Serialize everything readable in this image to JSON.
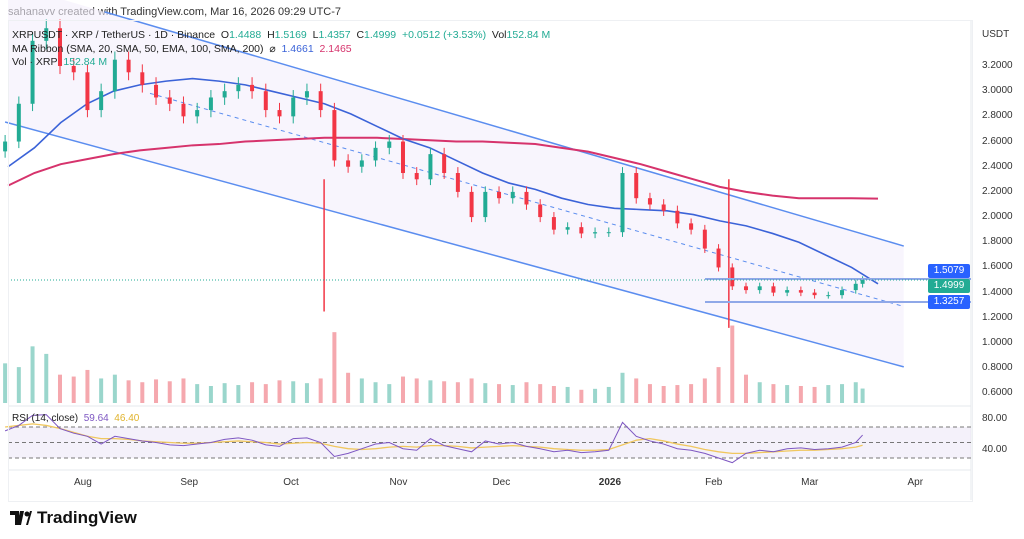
{
  "header": {
    "credit": "sahanavv created with TradingView.com, Mar 16, 2026 09:29 UTC-7"
  },
  "legend": {
    "symbol": "XRPUSDT · XRP / TetherUS · 1D · Binance",
    "o_label": "O",
    "o": "1.4488",
    "h_label": "H",
    "h": "1.5169",
    "l_label": "L",
    "l": "1.4357",
    "c_label": "C",
    "c": "1.4999",
    "change": "+0.0512 (+3.53%)",
    "vol_label": "Vol",
    "vol": "152.84 M",
    "ma": "MA Ribbon (SMA, 20, SMA, 50, EMA, 100, SMA, 200)",
    "ma_sym": "⌀",
    "ma1": "1.4661",
    "ma2": "2.1465",
    "vol_line": "Vol · XRP",
    "vol_value": "152.84 M",
    "rsi": "RSI (14, close)",
    "rsi1": "59.64",
    "rsi2": "46.40"
  },
  "currency": "USDT",
  "brand": "TradingView",
  "colors": {
    "up": "#22ab94",
    "down": "#f23645",
    "ma_blue": "#3b63d8",
    "ma_red": "#d6336c",
    "channel": "#5b8def",
    "rsi": "#7e57c2",
    "rsi_ma": "#f0c75e"
  },
  "chart_data": {
    "type": "candlestick",
    "ylim": [
      0.5,
      3.4
    ],
    "y_ticks": [
      "3.2000",
      "3.0000",
      "2.8000",
      "2.6000",
      "2.4000",
      "2.2000",
      "2.0000",
      "1.8000",
      "1.6000",
      "1.4000",
      "1.2000",
      "1.0000",
      "0.8000",
      "0.6000"
    ],
    "x_ticks": [
      {
        "label": "Aug",
        "date": "2025-08-01"
      },
      {
        "label": "Sep",
        "date": "2025-09-01"
      },
      {
        "label": "Oct",
        "date": "2025-10-01"
      },
      {
        "label": "Nov",
        "date": "2025-11-01"
      },
      {
        "label": "Dec",
        "date": "2025-12-01"
      },
      {
        "label": "2026",
        "date": "2026-01-01"
      },
      {
        "label": "Feb",
        "date": "2026-02-01"
      },
      {
        "label": "Mar",
        "date": "2026-03-01"
      },
      {
        "label": "Apr",
        "date": "2026-04-01"
      }
    ],
    "dates": [
      "2025-07-09",
      "2025-07-13",
      "2025-07-17",
      "2025-07-21",
      "2025-07-25",
      "2025-07-29",
      "2025-08-02",
      "2025-08-06",
      "2025-08-10",
      "2025-08-14",
      "2025-08-18",
      "2025-08-22",
      "2025-08-26",
      "2025-08-30",
      "2025-09-03",
      "2025-09-07",
      "2025-09-11",
      "2025-09-15",
      "2025-09-19",
      "2025-09-23",
      "2025-09-27",
      "2025-10-01",
      "2025-10-05",
      "2025-10-09",
      "2025-10-13",
      "2025-10-17",
      "2025-10-21",
      "2025-10-25",
      "2025-10-29",
      "2025-11-02",
      "2025-11-06",
      "2025-11-10",
      "2025-11-14",
      "2025-11-18",
      "2025-11-22",
      "2025-11-26",
      "2025-11-30",
      "2025-12-04",
      "2025-12-08",
      "2025-12-12",
      "2025-12-16",
      "2025-12-20",
      "2025-12-24",
      "2025-12-28",
      "2026-01-01",
      "2026-01-05",
      "2026-01-09",
      "2026-01-13",
      "2026-01-17",
      "2026-01-21",
      "2026-01-25",
      "2026-01-29",
      "2026-02-02",
      "2026-02-06",
      "2026-02-10",
      "2026-02-14",
      "2026-02-18",
      "2026-02-22",
      "2026-02-26",
      "2026-03-02",
      "2026-03-06",
      "2026-03-10",
      "2026-03-14",
      "2026-03-16"
    ],
    "close": [
      2.6,
      2.9,
      3.4,
      3.5,
      3.2,
      3.15,
      2.85,
      3.0,
      3.25,
      3.15,
      3.05,
      2.95,
      2.9,
      2.8,
      2.85,
      2.95,
      3.0,
      3.05,
      3.0,
      2.85,
      2.8,
      2.95,
      3.0,
      2.85,
      2.45,
      2.4,
      2.45,
      2.55,
      2.6,
      2.35,
      2.3,
      2.5,
      2.35,
      2.2,
      2.0,
      2.2,
      2.15,
      2.2,
      2.1,
      2.0,
      1.9,
      1.92,
      1.87,
      1.88,
      1.88,
      2.35,
      2.15,
      2.1,
      2.05,
      1.95,
      1.9,
      1.75,
      1.6,
      1.45,
      1.42,
      1.45,
      1.4,
      1.42,
      1.4,
      1.38,
      1.38,
      1.42,
      1.47,
      1.4999
    ],
    "wick_lows": [
      {
        "date": "2025-10-10",
        "low": 1.25
      },
      {
        "date": "2026-02-05",
        "low": 1.12
      }
    ],
    "volume_m": [
      420,
      380,
      600,
      520,
      300,
      280,
      350,
      260,
      300,
      240,
      220,
      250,
      230,
      260,
      200,
      180,
      210,
      190,
      220,
      200,
      240,
      230,
      210,
      260,
      750,
      320,
      260,
      220,
      200,
      280,
      260,
      240,
      230,
      220,
      260,
      210,
      200,
      190,
      220,
      200,
      180,
      170,
      140,
      150,
      170,
      320,
      260,
      200,
      180,
      190,
      200,
      260,
      380,
      820,
      300,
      220,
      200,
      190,
      180,
      170,
      190,
      200,
      220,
      153
    ],
    "ma_50": [
      2.4,
      2.55,
      2.75,
      2.9,
      3.0,
      3.05,
      3.08,
      3.1,
      3.08,
      3.05,
      3.0,
      2.95,
      2.9,
      2.82,
      2.72,
      2.62,
      2.55,
      2.45,
      2.35,
      2.27,
      2.22,
      2.15,
      2.1,
      2.07,
      2.06,
      2.05,
      2.02,
      1.97,
      1.93,
      1.87,
      1.8,
      1.7,
      1.6,
      1.47
    ],
    "ma_200": [
      2.25,
      2.35,
      2.42,
      2.46,
      2.5,
      2.53,
      2.55,
      2.57,
      2.58,
      2.6,
      2.61,
      2.62,
      2.63,
      2.63,
      2.63,
      2.62,
      2.61,
      2.6,
      2.6,
      2.59,
      2.58,
      2.55,
      2.52,
      2.47,
      2.42,
      2.36,
      2.3,
      2.24,
      2.2,
      2.17,
      2.15,
      2.15,
      2.15,
      2.1465
    ],
    "channel": {
      "upper": [
        {
          "date": "2025-08-07",
          "price": 3.63
        },
        {
          "date": "2026-03-28",
          "price": 1.77
        }
      ],
      "lower": [
        {
          "date": "2025-07-09",
          "price": 2.755
        },
        {
          "date": "2026-03-28",
          "price": 0.81
        }
      ]
    },
    "levels": [
      {
        "price": 1.5079,
        "label": "1.5079",
        "color": "#2962ff"
      },
      {
        "price": 1.4999,
        "label": "1.4999",
        "color": "#22ab94"
      },
      {
        "price": 1.3257,
        "label": "1.3257",
        "color": "#2962ff"
      }
    ],
    "rsi": {
      "ticks": [
        "80.00",
        "40.00"
      ],
      "bands": [
        70,
        50,
        30
      ],
      "values": [
        65,
        72,
        85,
        86,
        68,
        62,
        58,
        48,
        58,
        55,
        52,
        50,
        47,
        46,
        48,
        50,
        54,
        56,
        53,
        47,
        45,
        55,
        56,
        50,
        32,
        36,
        42,
        48,
        50,
        42,
        40,
        55,
        46,
        42,
        38,
        52,
        48,
        50,
        45,
        42,
        38,
        40,
        37,
        38,
        40,
        76,
        58,
        52,
        48,
        42,
        40,
        36,
        30,
        24,
        36,
        40,
        38,
        42,
        43,
        41,
        42,
        44,
        50,
        59.64
      ],
      "ma": [
        70,
        72,
        74,
        72,
        68,
        63,
        58,
        55,
        55,
        54,
        52,
        51,
        50,
        49,
        49,
        50,
        51,
        52,
        51,
        50,
        48,
        49,
        50,
        49,
        45,
        42,
        41,
        42,
        44,
        45,
        44,
        46,
        46,
        45,
        43,
        44,
        45,
        46,
        45,
        44,
        42,
        41,
        40,
        40,
        41,
        47,
        53,
        55,
        52,
        48,
        45,
        41,
        38,
        36,
        36,
        37,
        38,
        39,
        40,
        40,
        41,
        42,
        44,
        46.4
      ]
    }
  }
}
